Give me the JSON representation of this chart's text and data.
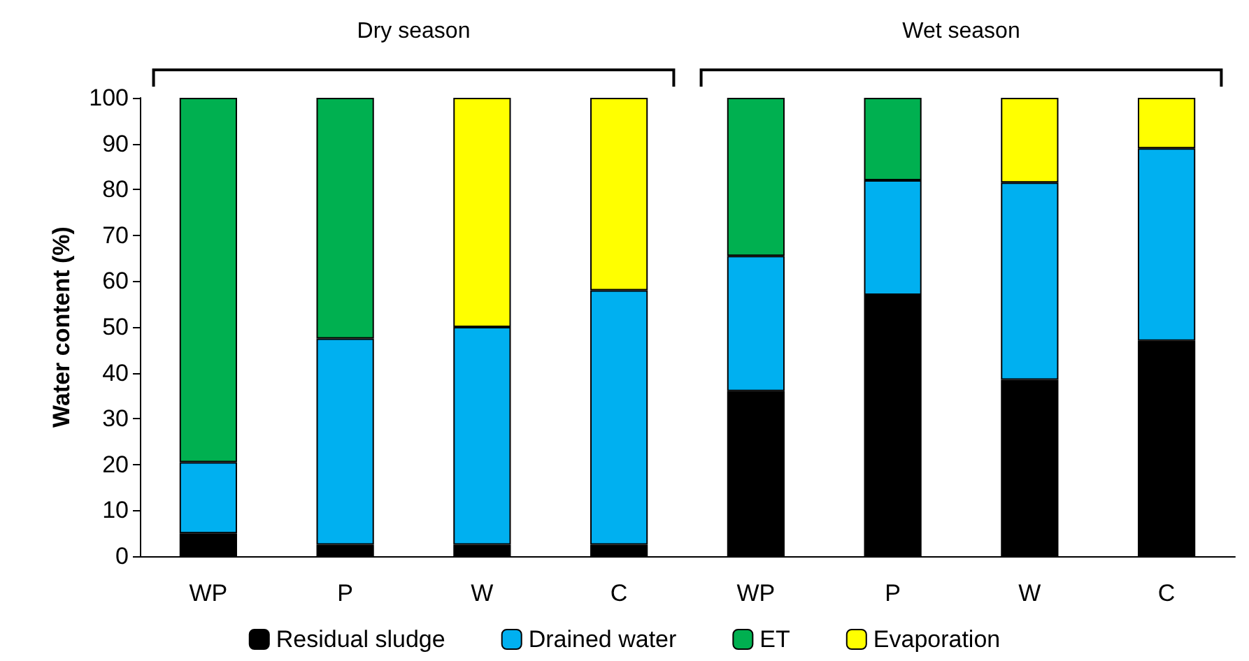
{
  "chart_data": {
    "type": "bar",
    "stacked": true,
    "ylabel": "Water content (%)",
    "categories": [
      "WP",
      "P",
      "W",
      "C",
      "WP",
      "P",
      "W",
      "C"
    ],
    "series": [
      {
        "name": "Residual sludge",
        "color": "#000000",
        "values": [
          5,
          2.5,
          2.5,
          2.5,
          36,
          57,
          38.5,
          47
        ]
      },
      {
        "name": "Drained water",
        "color": "#00b0f0",
        "values": [
          15.5,
          45,
          47.5,
          55.5,
          29.5,
          25,
          43,
          42
        ]
      },
      {
        "name": "ET",
        "color": "#00b050",
        "values": [
          79.5,
          52.5,
          null,
          null,
          34.5,
          18,
          null,
          null
        ]
      },
      {
        "name": "Evaporation",
        "color": "#ffff00",
        "values": [
          null,
          null,
          50,
          42,
          null,
          null,
          18.5,
          11
        ]
      }
    ],
    "ylim": [
      0,
      100
    ],
    "yticks": [
      0,
      10,
      20,
      30,
      40,
      50,
      60,
      70,
      80,
      90,
      100
    ],
    "annotations": [
      "Dry season",
      "Wet season"
    ],
    "legend": "bottom",
    "grid": false
  }
}
